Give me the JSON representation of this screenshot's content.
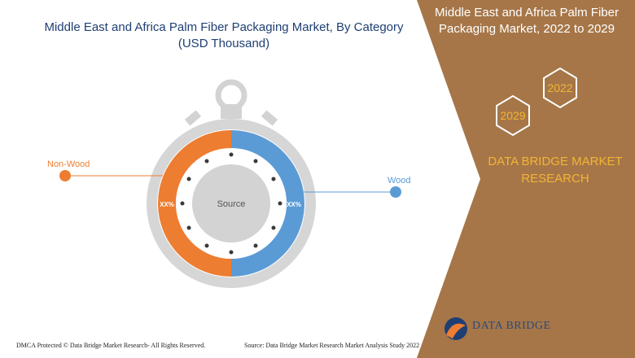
{
  "chart_title": "Middle East and Africa Palm Fiber Packaging Market, By Category",
  "chart_subtitle": "(USD Thousand)",
  "panel_title": "Middle East and Africa Palm Fiber Packaging Market, 2022 to 2029",
  "years": [
    "2029",
    "2022"
  ],
  "brand": "DATA BRIDGE MARKET RESEARCH",
  "logo_name": "DATA BRIDGE",
  "footer_left": "DMCA Protected © Data Bridge Market Research- All Rights Reserved.",
  "footer_source": "Source: Data Bridge Market Research Market Analysis Study 2022",
  "colors": {
    "panel": "#a67648",
    "accent": "#f2b534",
    "wood": "#5b9bd5",
    "nonwood": "#ed7d31",
    "title": "#1f3f73"
  },
  "chart_data": {
    "type": "pie",
    "center_label": "Source",
    "slices": [
      {
        "name": "Wood",
        "label": "XX%",
        "color": "#5b9bd5"
      },
      {
        "name": "Non-Wood",
        "label": "XX%",
        "color": "#ed7d31"
      }
    ]
  }
}
